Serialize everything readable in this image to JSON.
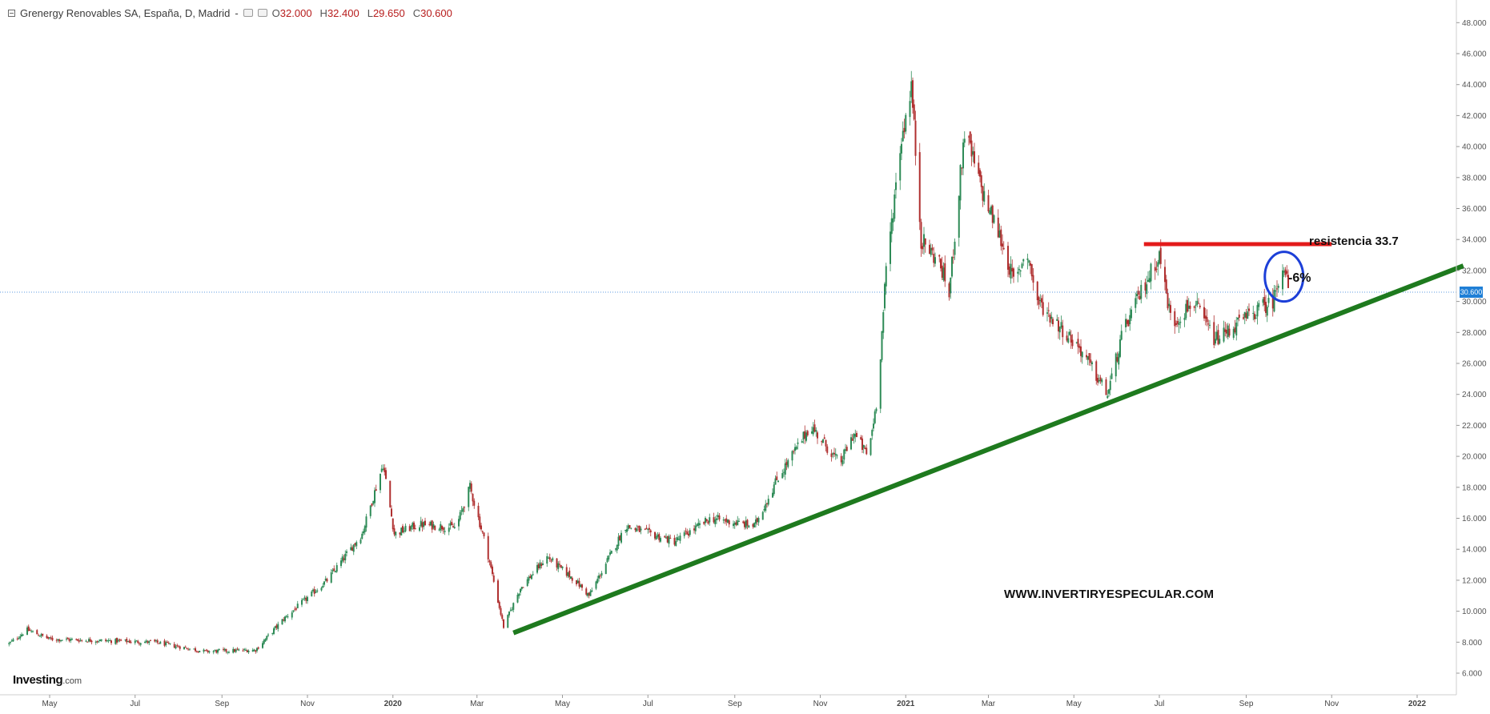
{
  "header": {
    "symbol_title": "Grenergy Renovables SA, España, D, Madrid",
    "separator": "-",
    "ohlc": [
      {
        "label": "O",
        "value": "32.000"
      },
      {
        "label": "H",
        "value": "32.400"
      },
      {
        "label": "L",
        "value": "29.650"
      },
      {
        "label": "C",
        "value": "30.600"
      }
    ]
  },
  "branding": {
    "logo_main": "Investing",
    "logo_suffix": ".com"
  },
  "annotations": {
    "resistance_label": "resistencia 33.7",
    "pct_label": "-6%",
    "website": "WWW.INVERTIRYESPECULAR.COM"
  },
  "colors": {
    "up_candle": "#2e8b57",
    "down_candle": "#b03030",
    "trendline": "#1e7a1e",
    "resistance": "#e31b1b",
    "circle": "#1c3fd8",
    "price_line": "#2a7bd6",
    "price_tag_bg": "#1f7fd6",
    "axis_text": "#555555"
  },
  "chart_data": {
    "type": "candlestick",
    "title": "Grenergy Renovables SA, España, D, Madrid",
    "interval": "D",
    "last_price": 30.6,
    "last_price_label": "30.600",
    "ylim": [
      5,
      49
    ],
    "y_ticks": [
      "6.000",
      "8.000",
      "10.000",
      "12.000",
      "14.000",
      "16.000",
      "18.000",
      "20.000",
      "22.000",
      "24.000",
      "26.000",
      "28.000",
      "30.000",
      "32.000",
      "34.000",
      "36.000",
      "38.000",
      "40.000",
      "42.000",
      "44.000",
      "46.000",
      "48.000"
    ],
    "x_ticks": [
      "May",
      "Jul",
      "Sep",
      "Nov",
      "2020",
      "Mar",
      "May",
      "Jul",
      "Sep",
      "Nov",
      "2021",
      "Mar",
      "May",
      "Jul",
      "Sep",
      "Nov",
      "2022"
    ],
    "grid": false,
    "series": [
      {
        "name": "",
        "type": "ohlc-path",
        "anchors": [
          {
            "date": "2019-04-02",
            "close": 7.9
          },
          {
            "date": "2019-04-15",
            "close": 8.8
          },
          {
            "date": "2019-05-01",
            "close": 8.2
          },
          {
            "date": "2019-07-15",
            "close": 8.0
          },
          {
            "date": "2019-08-20",
            "close": 7.4
          },
          {
            "date": "2019-09-25",
            "close": 7.5
          },
          {
            "date": "2019-10-15",
            "close": 9.5
          },
          {
            "date": "2019-11-15",
            "close": 12.0
          },
          {
            "date": "2019-12-10",
            "close": 15.0
          },
          {
            "date": "2019-12-25",
            "close": 19.5
          },
          {
            "date": "2020-01-02",
            "close": 15.0
          },
          {
            "date": "2020-01-20",
            "close": 15.6
          },
          {
            "date": "2020-02-15",
            "close": 15.4
          },
          {
            "date": "2020-02-25",
            "close": 18.0
          },
          {
            "date": "2020-03-08",
            "close": 14.0
          },
          {
            "date": "2020-03-20",
            "close": 9.0
          },
          {
            "date": "2020-04-01",
            "close": 11.5
          },
          {
            "date": "2020-04-20",
            "close": 13.5
          },
          {
            "date": "2020-05-10",
            "close": 12.0
          },
          {
            "date": "2020-05-20",
            "close": 11.0
          },
          {
            "date": "2020-06-15",
            "close": 15.5
          },
          {
            "date": "2020-07-20",
            "close": 14.5
          },
          {
            "date": "2020-08-15",
            "close": 16.0
          },
          {
            "date": "2020-09-15",
            "close": 15.5
          },
          {
            "date": "2020-10-01",
            "close": 18.5
          },
          {
            "date": "2020-10-15",
            "close": 20.5
          },
          {
            "date": "2020-10-25",
            "close": 22.0
          },
          {
            "date": "2020-11-15",
            "close": 19.5
          },
          {
            "date": "2020-11-25",
            "close": 21.5
          },
          {
            "date": "2020-12-05",
            "close": 20.0
          },
          {
            "date": "2020-12-12",
            "close": 24.0
          },
          {
            "date": "2020-12-18",
            "close": 32.0
          },
          {
            "date": "2020-12-28",
            "close": 40.0
          },
          {
            "date": "2021-01-05",
            "close": 44.0
          },
          {
            "date": "2021-01-12",
            "close": 34.0
          },
          {
            "date": "2021-01-25",
            "close": 32.5
          },
          {
            "date": "2021-02-01",
            "close": 30.5
          },
          {
            "date": "2021-02-12",
            "close": 41.0
          },
          {
            "date": "2021-02-25",
            "close": 37.0
          },
          {
            "date": "2021-03-10",
            "close": 34.0
          },
          {
            "date": "2021-03-20",
            "close": 31.0
          },
          {
            "date": "2021-03-28",
            "close": 33.5
          },
          {
            "date": "2021-04-05",
            "close": 30.0
          },
          {
            "date": "2021-04-20",
            "close": 28.5
          },
          {
            "date": "2021-05-05",
            "close": 27.0
          },
          {
            "date": "2021-05-25",
            "close": 24.0
          },
          {
            "date": "2021-06-05",
            "close": 28.0
          },
          {
            "date": "2021-06-20",
            "close": 31.0
          },
          {
            "date": "2021-07-01",
            "close": 33.0
          },
          {
            "date": "2021-07-10",
            "close": 28.5
          },
          {
            "date": "2021-07-25",
            "close": 30.0
          },
          {
            "date": "2021-08-10",
            "close": 27.5
          },
          {
            "date": "2021-08-25",
            "close": 28.5
          },
          {
            "date": "2021-09-10",
            "close": 29.5
          },
          {
            "date": "2021-09-20",
            "close": 30.0
          },
          {
            "date": "2021-09-27",
            "close": 32.5
          },
          {
            "date": "2021-10-02",
            "close": 30.6
          }
        ]
      }
    ],
    "overlays": {
      "support_trendline": {
        "from": {
          "date": "2020-03-27",
          "value": 8.6
        },
        "to": {
          "date": "2022-02-03",
          "value": 32.3
        }
      },
      "resistance_line": {
        "from": {
          "date": "2021-06-20",
          "value": 33.7
        },
        "to": {
          "date": "2021-11-01",
          "value": 33.7
        }
      },
      "circle_center": {
        "date": "2021-09-28",
        "value": 31.6
      },
      "last_price_line": 30.6
    }
  }
}
